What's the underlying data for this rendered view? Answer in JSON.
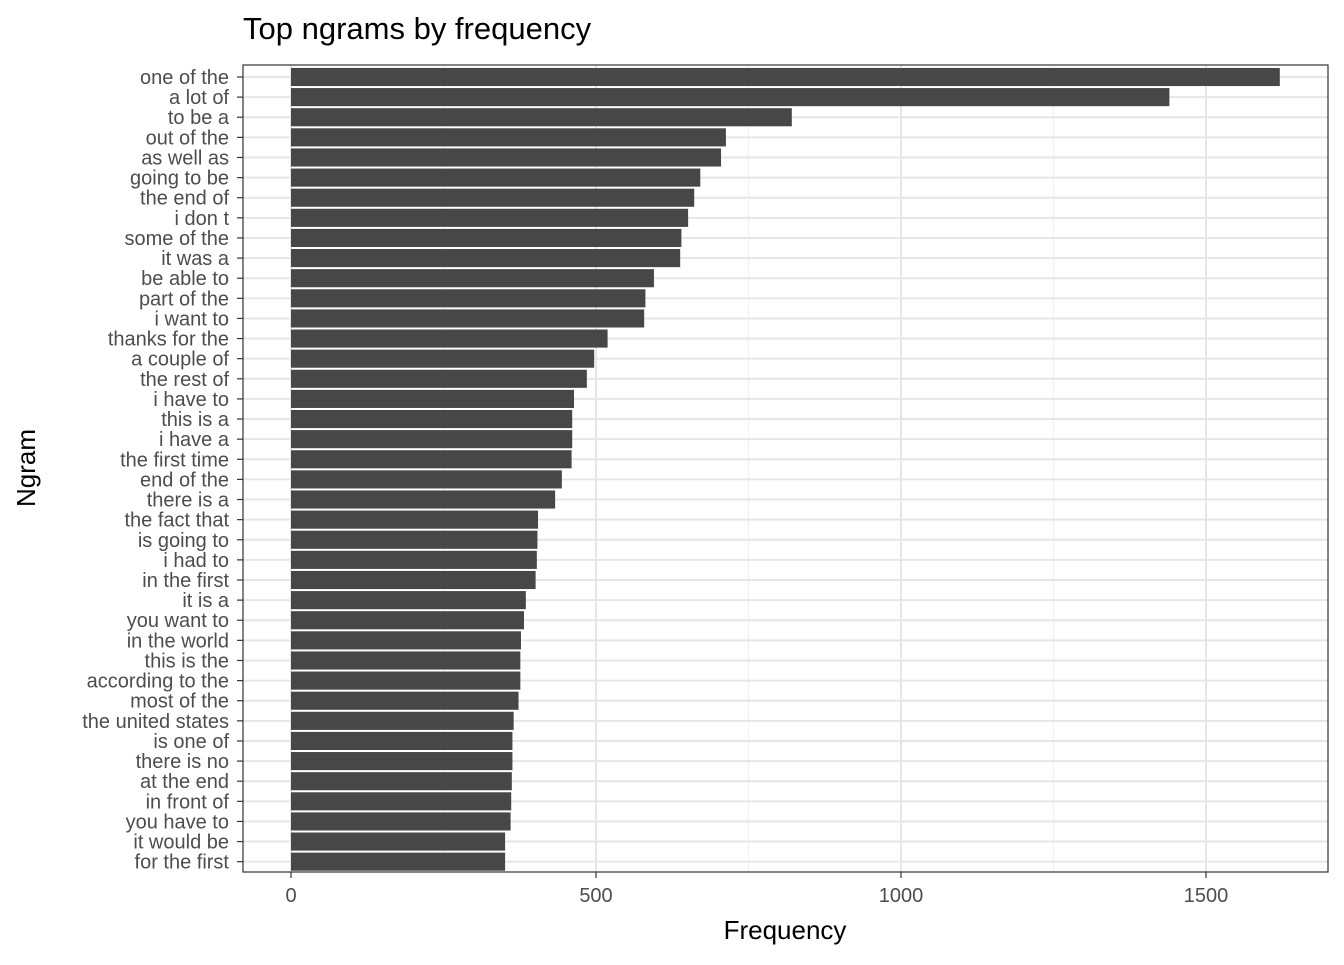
{
  "chart_data": {
    "type": "bar",
    "orientation": "horizontal",
    "title": "Top ngrams by frequency",
    "xlabel": "Frequency",
    "ylabel": "Ngram",
    "xlim": [
      -160,
      1630
    ],
    "xticks": [
      0,
      500,
      1000,
      1500
    ],
    "grid": true,
    "bar_color": "#474747",
    "categories": [
      "one of the",
      "a lot of",
      "to be a",
      "out of the",
      "as well as",
      "going to be",
      "the end of",
      "i don t",
      "some of the",
      "it was a",
      "be able to",
      "part of the",
      "i want to",
      "thanks for the",
      "a couple of",
      "the rest of",
      "i have to",
      "this is a",
      "i have a",
      "the first time",
      "end of the",
      "there is a",
      "the fact that",
      "is going to",
      "i had to",
      "in the first",
      "it is a",
      "you want to",
      "in the world",
      "this is the",
      "according to the",
      "most of the",
      "the united states",
      "is one of",
      "there is no",
      "at the end",
      "in front of",
      "you have to",
      "it would be",
      "for the first"
    ],
    "values": [
      1621,
      1440,
      821,
      713,
      705,
      671,
      661,
      651,
      640,
      638,
      595,
      581,
      579,
      519,
      497,
      485,
      464,
      461,
      461,
      460,
      444,
      433,
      405,
      404,
      403,
      401,
      385,
      382,
      377,
      376,
      376,
      373,
      365,
      363,
      363,
      362,
      361,
      360,
      351,
      351
    ]
  }
}
